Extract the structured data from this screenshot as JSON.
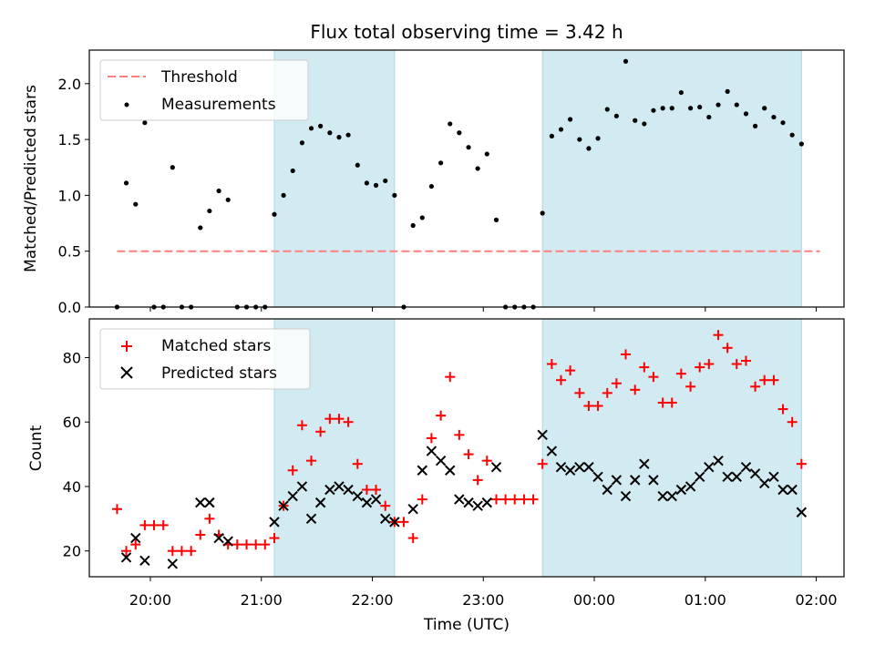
{
  "chart_data": {
    "type": "scatter",
    "title": "Flux total observing time = 3.42 h",
    "xlabel": "Time (UTC)",
    "x_unit": "hours since 19:00 UTC",
    "xlim": [
      0.45,
      7.25
    ],
    "xticks": [
      {
        "value": 1,
        "label": "20:00"
      },
      {
        "value": 2,
        "label": "21:00"
      },
      {
        "value": 3,
        "label": "22:00"
      },
      {
        "value": 4,
        "label": "23:00"
      },
      {
        "value": 5,
        "label": "00:00"
      },
      {
        "value": 6,
        "label": "01:00"
      },
      {
        "value": 7,
        "label": "02:00"
      }
    ],
    "shaded_intervals": [
      [
        2.117,
        3.2
      ],
      [
        4.533,
        6.867
      ]
    ],
    "shade_color": "#d2eaf1",
    "panels": [
      {
        "id": "top",
        "ylabel": "Matched/Predicted stars",
        "ylim": [
          0,
          2.3
        ],
        "yticks": [
          "0.0",
          "0.5",
          "1.0",
          "1.5",
          "2.0"
        ],
        "legend_position": "upper-left",
        "series": [
          {
            "name": "Threshold",
            "kind": "dashed-line",
            "color": "#ff7f7f",
            "points": [
              [
                0.7,
                0.5
              ],
              [
                7.033,
                0.5
              ]
            ]
          },
          {
            "name": "Measurements",
            "kind": "dot",
            "color": "#000000",
            "points": [
              [
                0.7,
                0.0
              ],
              [
                0.783,
                1.11
              ],
              [
                0.867,
                0.92
              ],
              [
                0.95,
                1.65
              ],
              [
                1.033,
                0.0
              ],
              [
                1.117,
                0.0
              ],
              [
                1.2,
                1.25
              ],
              [
                1.283,
                0.0
              ],
              [
                1.367,
                0.0
              ],
              [
                1.45,
                0.71
              ],
              [
                1.533,
                0.86
              ],
              [
                1.617,
                1.04
              ],
              [
                1.7,
                0.96
              ],
              [
                1.783,
                0.0
              ],
              [
                1.867,
                0.0
              ],
              [
                1.95,
                0.0
              ],
              [
                2.033,
                0.0
              ],
              [
                2.117,
                0.83
              ],
              [
                2.2,
                1.0
              ],
              [
                2.283,
                1.22
              ],
              [
                2.367,
                1.47
              ],
              [
                2.45,
                1.6
              ],
              [
                2.533,
                1.62
              ],
              [
                2.617,
                1.56
              ],
              [
                2.7,
                1.52
              ],
              [
                2.783,
                1.54
              ],
              [
                2.867,
                1.27
              ],
              [
                2.95,
                1.11
              ],
              [
                3.033,
                1.09
              ],
              [
                3.117,
                1.13
              ],
              [
                3.2,
                1.0
              ],
              [
                3.283,
                0.0
              ],
              [
                3.367,
                0.73
              ],
              [
                3.45,
                0.8
              ],
              [
                3.533,
                1.08
              ],
              [
                3.617,
                1.29
              ],
              [
                3.7,
                1.64
              ],
              [
                3.783,
                1.56
              ],
              [
                3.867,
                1.43
              ],
              [
                3.95,
                1.24
              ],
              [
                4.033,
                1.37
              ],
              [
                4.117,
                0.78
              ],
              [
                4.2,
                0.0
              ],
              [
                4.283,
                0.0
              ],
              [
                4.367,
                0.0
              ],
              [
                4.45,
                0.0
              ],
              [
                4.533,
                0.84
              ],
              [
                4.617,
                1.53
              ],
              [
                4.7,
                1.59
              ],
              [
                4.783,
                1.68
              ],
              [
                4.867,
                1.5
              ],
              [
                4.95,
                1.42
              ],
              [
                5.033,
                1.51
              ],
              [
                5.117,
                1.77
              ],
              [
                5.2,
                1.71
              ],
              [
                5.283,
                2.2
              ],
              [
                5.367,
                1.67
              ],
              [
                5.45,
                1.64
              ],
              [
                5.533,
                1.76
              ],
              [
                5.617,
                1.78
              ],
              [
                5.7,
                1.78
              ],
              [
                5.783,
                1.92
              ],
              [
                5.867,
                1.78
              ],
              [
                5.95,
                1.79
              ],
              [
                6.033,
                1.7
              ],
              [
                6.117,
                1.81
              ],
              [
                6.2,
                1.93
              ],
              [
                6.283,
                1.81
              ],
              [
                6.367,
                1.73
              ],
              [
                6.45,
                1.62
              ],
              [
                6.533,
                1.78
              ],
              [
                6.617,
                1.7
              ],
              [
                6.7,
                1.65
              ],
              [
                6.783,
                1.54
              ],
              [
                6.867,
                1.46
              ]
            ]
          }
        ]
      },
      {
        "id": "bottom",
        "ylabel": "Count",
        "ylim": [
          12,
          92
        ],
        "yticks": [
          "20",
          "40",
          "60",
          "80"
        ],
        "legend_position": "upper-left",
        "series": [
          {
            "name": "Matched stars",
            "kind": "plus",
            "color": "#ff0000",
            "points": [
              [
                0.7,
                33
              ],
              [
                0.783,
                20
              ],
              [
                0.867,
                22
              ],
              [
                0.95,
                28
              ],
              [
                1.033,
                28
              ],
              [
                1.117,
                28
              ],
              [
                1.2,
                20
              ],
              [
                1.283,
                20
              ],
              [
                1.367,
                20
              ],
              [
                1.45,
                25
              ],
              [
                1.533,
                30
              ],
              [
                1.617,
                25
              ],
              [
                1.7,
                22
              ],
              [
                1.783,
                22
              ],
              [
                1.867,
                22
              ],
              [
                1.95,
                22
              ],
              [
                2.033,
                22
              ],
              [
                2.117,
                24
              ],
              [
                2.2,
                34
              ],
              [
                2.283,
                45
              ],
              [
                2.367,
                59
              ],
              [
                2.45,
                48
              ],
              [
                2.533,
                57
              ],
              [
                2.617,
                61
              ],
              [
                2.7,
                61
              ],
              [
                2.783,
                60
              ],
              [
                2.867,
                47
              ],
              [
                2.95,
                39
              ],
              [
                3.033,
                39
              ],
              [
                3.117,
                34
              ],
              [
                3.2,
                29
              ],
              [
                3.283,
                29
              ],
              [
                3.367,
                24
              ],
              [
                3.45,
                36
              ],
              [
                3.533,
                55
              ],
              [
                3.617,
                62
              ],
              [
                3.7,
                74
              ],
              [
                3.783,
                56
              ],
              [
                3.867,
                50
              ],
              [
                3.95,
                42
              ],
              [
                4.033,
                48
              ],
              [
                4.117,
                36
              ],
              [
                4.2,
                36
              ],
              [
                4.283,
                36
              ],
              [
                4.367,
                36
              ],
              [
                4.45,
                36
              ],
              [
                4.533,
                47
              ],
              [
                4.617,
                78
              ],
              [
                4.7,
                73
              ],
              [
                4.783,
                76
              ],
              [
                4.867,
                69
              ],
              [
                4.95,
                65
              ],
              [
                5.033,
                65
              ],
              [
                5.117,
                69
              ],
              [
                5.2,
                72
              ],
              [
                5.283,
                81
              ],
              [
                5.367,
                70
              ],
              [
                5.45,
                77
              ],
              [
                5.533,
                74
              ],
              [
                5.617,
                66
              ],
              [
                5.7,
                66
              ],
              [
                5.783,
                75
              ],
              [
                5.867,
                71
              ],
              [
                5.95,
                77
              ],
              [
                6.033,
                78
              ],
              [
                6.117,
                87
              ],
              [
                6.2,
                83
              ],
              [
                6.283,
                78
              ],
              [
                6.367,
                79
              ],
              [
                6.45,
                71
              ],
              [
                6.533,
                73
              ],
              [
                6.617,
                73
              ],
              [
                6.7,
                64
              ],
              [
                6.783,
                60
              ],
              [
                6.867,
                47
              ]
            ]
          },
          {
            "name": "Predicted stars",
            "kind": "x",
            "color": "#000000",
            "points": [
              [
                0.783,
                18
              ],
              [
                0.867,
                24
              ],
              [
                0.95,
                17
              ],
              [
                1.2,
                16
              ],
              [
                1.45,
                35
              ],
              [
                1.533,
                35
              ],
              [
                1.617,
                24
              ],
              [
                1.7,
                23
              ],
              [
                2.117,
                29
              ],
              [
                2.2,
                34
              ],
              [
                2.283,
                37
              ],
              [
                2.367,
                40
              ],
              [
                2.45,
                30
              ],
              [
                2.533,
                35
              ],
              [
                2.617,
                39
              ],
              [
                2.7,
                40
              ],
              [
                2.783,
                39
              ],
              [
                2.867,
                37
              ],
              [
                2.95,
                35
              ],
              [
                3.033,
                36
              ],
              [
                3.117,
                30
              ],
              [
                3.2,
                29
              ],
              [
                3.367,
                33
              ],
              [
                3.45,
                45
              ],
              [
                3.533,
                51
              ],
              [
                3.617,
                48
              ],
              [
                3.7,
                45
              ],
              [
                3.783,
                36
              ],
              [
                3.867,
                35
              ],
              [
                3.95,
                34
              ],
              [
                4.033,
                35
              ],
              [
                4.117,
                46
              ],
              [
                4.533,
                56
              ],
              [
                4.617,
                51
              ],
              [
                4.7,
                46
              ],
              [
                4.783,
                45
              ],
              [
                4.867,
                46
              ],
              [
                4.95,
                46
              ],
              [
                5.033,
                43
              ],
              [
                5.117,
                39
              ],
              [
                5.2,
                42
              ],
              [
                5.283,
                37
              ],
              [
                5.367,
                42
              ],
              [
                5.45,
                47
              ],
              [
                5.533,
                42
              ],
              [
                5.617,
                37
              ],
              [
                5.7,
                37
              ],
              [
                5.783,
                39
              ],
              [
                5.867,
                40
              ],
              [
                5.95,
                43
              ],
              [
                6.033,
                46
              ],
              [
                6.117,
                48
              ],
              [
                6.2,
                43
              ],
              [
                6.283,
                43
              ],
              [
                6.367,
                46
              ],
              [
                6.45,
                44
              ],
              [
                6.533,
                41
              ],
              [
                6.617,
                43
              ],
              [
                6.7,
                39
              ],
              [
                6.783,
                39
              ],
              [
                6.867,
                32
              ]
            ]
          }
        ]
      }
    ]
  }
}
